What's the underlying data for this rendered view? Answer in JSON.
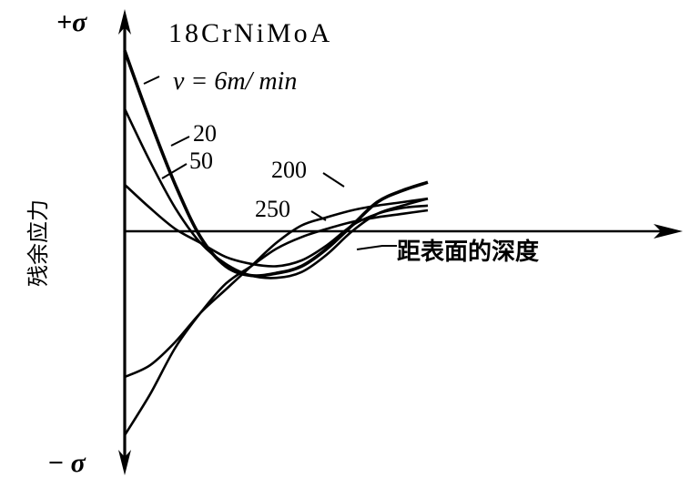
{
  "chart_data": {
    "type": "line",
    "title": "18CrNiMoA",
    "ylabel": "残余应力",
    "xlabel": "距表面的深度",
    "y_top_label": "+σ",
    "y_bottom_label": "− σ",
    "grid": false,
    "legend": "none (curves labelled directly)",
    "x": [
      0,
      0.5,
      1,
      1.5,
      2,
      2.5,
      3,
      3.5,
      4,
      4.5,
      5,
      5.5,
      6
    ],
    "ylim": [
      -2.2,
      2.0
    ],
    "xlim": [
      0,
      6.0
    ],
    "series": [
      {
        "name": "v = 6m/ min",
        "label": "v = 6m/ min",
        "values": [
          1.55,
          0.95,
          0.4,
          -0.05,
          -0.3,
          -0.38,
          -0.36,
          -0.3,
          -0.15,
          0.05,
          0.25,
          0.35,
          0.42
        ]
      },
      {
        "name": "20",
        "label": "20",
        "values": [
          1.05,
          0.6,
          0.2,
          -0.1,
          -0.28,
          -0.38,
          -0.4,
          -0.35,
          -0.2,
          0.0,
          0.15,
          0.22,
          0.28
        ]
      },
      {
        "name": "50",
        "label": "50",
        "values": [
          0.4,
          0.2,
          0.02,
          -0.1,
          -0.22,
          -0.28,
          -0.3,
          -0.25,
          -0.12,
          0.05,
          0.15,
          0.2,
          0.22
        ]
      },
      {
        "name": "200",
        "label": "200",
        "values": [
          -1.25,
          -1.15,
          -0.95,
          -0.7,
          -0.5,
          -0.3,
          -0.1,
          0.05,
          0.12,
          0.18,
          0.22,
          0.25,
          0.28
        ]
      },
      {
        "name": "250",
        "label": "250",
        "values": [
          -1.75,
          -1.4,
          -1.0,
          -0.7,
          -0.45,
          -0.3,
          -0.15,
          -0.05,
          0.02,
          0.08,
          0.12,
          0.15,
          0.18
        ]
      }
    ]
  }
}
